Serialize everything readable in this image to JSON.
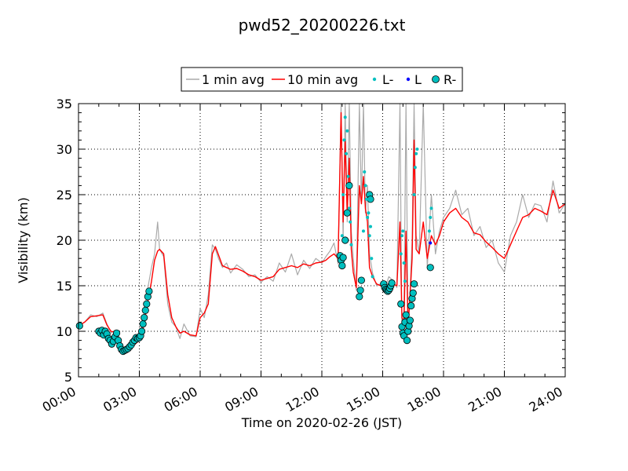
{
  "chart_data": {
    "type": "line",
    "title": "pwd52_20200226.txt",
    "xlabel": "Time on 2020-02-26 (JST)",
    "ylabel": "Visibility (km)",
    "xlim_hours": [
      0,
      24
    ],
    "ylim": [
      5,
      35
    ],
    "x_ticks": [
      {
        "h": 0,
        "label": "00:00"
      },
      {
        "h": 3,
        "label": "03:00"
      },
      {
        "h": 6,
        "label": "06:00"
      },
      {
        "h": 9,
        "label": "09:00"
      },
      {
        "h": 12,
        "label": "12:00"
      },
      {
        "h": 15,
        "label": "15:00"
      },
      {
        "h": 18,
        "label": "18:00"
      },
      {
        "h": 21,
        "label": "21:00"
      },
      {
        "h": 24,
        "label": "24:00"
      }
    ],
    "y_ticks": [
      {
        "v": 5,
        "label": "5"
      },
      {
        "v": 10,
        "label": "10"
      },
      {
        "v": 15,
        "label": "15"
      },
      {
        "v": 20,
        "label": "20"
      },
      {
        "v": 25,
        "label": "25"
      },
      {
        "v": 30,
        "label": "30"
      },
      {
        "v": 35,
        "label": "35"
      }
    ],
    "grid": true,
    "legend_position": "top-center",
    "colors": {
      "avg1": "#aaaaaa",
      "avg10": "#ff0000",
      "l_minus": "#00bfbf",
      "l": "#0000ff",
      "r_minus": "#00bfbf"
    },
    "series": [
      {
        "name": "1 min avg",
        "style": "line",
        "x": [
          0,
          0.3,
          0.6,
          0.9,
          1.2,
          1.4,
          1.6,
          1.8,
          2.0,
          2.2,
          2.4,
          2.6,
          2.8,
          3.0,
          3.2,
          3.4,
          3.6,
          3.75,
          3.9,
          4.0,
          4.2,
          4.4,
          4.6,
          4.8,
          5.0,
          5.2,
          5.5,
          5.8,
          6.0,
          6.2,
          6.4,
          6.6,
          6.75,
          6.9,
          7.1,
          7.3,
          7.5,
          7.8,
          8.1,
          8.4,
          8.7,
          9.0,
          9.3,
          9.6,
          9.9,
          10.2,
          10.5,
          10.8,
          11.1,
          11.4,
          11.7,
          12.0,
          12.2,
          12.4,
          12.6,
          12.8,
          12.95,
          13.05,
          13.15,
          13.25,
          13.35,
          13.45,
          13.55,
          13.7,
          13.85,
          13.95,
          14.05,
          14.15,
          14.25,
          14.35,
          14.5,
          14.7,
          14.9,
          15.1,
          15.3,
          15.5,
          15.7,
          15.85,
          15.95,
          16.05,
          16.15,
          16.25,
          16.35,
          16.45,
          16.55,
          16.65,
          16.8,
          17.0,
          17.2,
          17.4,
          17.6,
          17.8,
          18.0,
          18.3,
          18.6,
          18.9,
          19.2,
          19.5,
          19.8,
          20.1,
          20.4,
          20.7,
          21.0,
          21.3,
          21.6,
          21.9,
          22.2,
          22.5,
          22.8,
          23.1,
          23.4,
          23.7,
          24.0
        ],
        "y": [
          10.6,
          11.0,
          11.8,
          11.6,
          12.0,
          10.8,
          9.8,
          10.1,
          9.4,
          8.0,
          7.8,
          8.3,
          8.8,
          9.2,
          11.5,
          14.5,
          17.0,
          18.5,
          22.0,
          19.0,
          18.2,
          13.0,
          11.0,
          10.5,
          9.2,
          10.8,
          9.5,
          9.4,
          12.5,
          11.5,
          14.0,
          19.5,
          19.0,
          18.0,
          17.0,
          17.5,
          16.4,
          17.3,
          16.8,
          16.0,
          16.2,
          15.4,
          16.0,
          15.5,
          17.5,
          16.5,
          18.5,
          16.2,
          17.8,
          16.9,
          18.0,
          17.5,
          18.2,
          18.8,
          19.7,
          17.4,
          35.0,
          20.0,
          35.0,
          22.0,
          35.0,
          21.0,
          18.0,
          14.5,
          35.0,
          24.0,
          35.0,
          23.0,
          26.0,
          18.5,
          16.4,
          15.0,
          15.2,
          14.6,
          16.0,
          15.6,
          14.8,
          35.0,
          9.5,
          12.0,
          35.0,
          10.0,
          14.5,
          20.0,
          35.0,
          20.5,
          18.5,
          35.0,
          17.0,
          25.0,
          18.5,
          21.0,
          22.5,
          23.5,
          25.5,
          22.8,
          23.5,
          20.5,
          21.5,
          19.2,
          20.0,
          17.5,
          16.5,
          20.5,
          22.0,
          25.0,
          22.5,
          24.0,
          23.8,
          22.0,
          26.5,
          23.0,
          24.0
        ]
      },
      {
        "name": "10 min avg",
        "style": "line",
        "x": [
          0,
          0.3,
          0.6,
          0.9,
          1.2,
          1.4,
          1.6,
          1.8,
          2.0,
          2.2,
          2.4,
          2.6,
          2.8,
          3.0,
          3.2,
          3.4,
          3.6,
          3.75,
          3.9,
          4.0,
          4.2,
          4.4,
          4.6,
          4.8,
          5.0,
          5.2,
          5.5,
          5.8,
          6.0,
          6.2,
          6.4,
          6.6,
          6.75,
          6.9,
          7.1,
          7.3,
          7.5,
          7.8,
          8.1,
          8.4,
          8.7,
          9.0,
          9.3,
          9.6,
          9.9,
          10.2,
          10.5,
          10.8,
          11.1,
          11.4,
          11.7,
          12.0,
          12.2,
          12.4,
          12.6,
          12.8,
          12.95,
          13.05,
          13.15,
          13.25,
          13.35,
          13.45,
          13.55,
          13.7,
          13.85,
          13.95,
          14.05,
          14.15,
          14.25,
          14.35,
          14.5,
          14.7,
          14.9,
          15.1,
          15.3,
          15.5,
          15.7,
          15.85,
          15.95,
          16.05,
          16.15,
          16.25,
          16.35,
          16.45,
          16.55,
          16.65,
          16.8,
          17.0,
          17.2,
          17.4,
          17.6,
          17.8,
          18.0,
          18.3,
          18.6,
          18.9,
          19.2,
          19.5,
          19.8,
          20.1,
          20.4,
          20.7,
          21.0,
          21.3,
          21.6,
          21.9,
          22.2,
          22.5,
          22.8,
          23.1,
          23.4,
          23.7,
          24.0
        ],
        "y": [
          10.6,
          11.0,
          11.6,
          11.7,
          11.8,
          10.7,
          10.0,
          9.9,
          9.2,
          8.2,
          7.8,
          8.1,
          8.6,
          9.0,
          10.5,
          13.0,
          15.5,
          17.8,
          18.8,
          19.0,
          18.5,
          14.0,
          11.5,
          10.5,
          9.8,
          10.0,
          9.6,
          9.5,
          11.5,
          12.0,
          13.0,
          18.5,
          19.3,
          18.4,
          17.2,
          17.0,
          16.8,
          16.9,
          16.6,
          16.2,
          16.0,
          15.6,
          15.8,
          16.0,
          16.8,
          17.0,
          17.2,
          17.0,
          17.4,
          17.2,
          17.5,
          17.6,
          17.8,
          18.2,
          18.5,
          18.0,
          34.0,
          22.0,
          31.0,
          23.0,
          29.0,
          19.0,
          16.5,
          14.8,
          26.0,
          24.0,
          27.0,
          23.5,
          22.0,
          17.0,
          16.0,
          15.2,
          15.0,
          14.7,
          15.0,
          15.2,
          15.0,
          22.0,
          11.5,
          11.0,
          21.0,
          10.5,
          14.0,
          18.0,
          31.0,
          19.0,
          18.5,
          22.0,
          18.0,
          20.5,
          19.5,
          20.5,
          22.0,
          23.0,
          23.5,
          22.5,
          22.0,
          20.8,
          20.6,
          19.8,
          19.2,
          18.5,
          18.0,
          19.5,
          21.0,
          22.5,
          22.8,
          23.5,
          23.2,
          22.8,
          25.5,
          23.5,
          24.0
        ]
      },
      {
        "name": "L-",
        "style": "small-dot",
        "x": [
          13.0,
          13.05,
          13.1,
          13.15,
          13.2,
          13.25,
          13.3,
          13.35,
          13.4,
          13.45,
          14.05,
          14.1,
          14.15,
          14.2,
          14.25,
          14.3,
          14.35,
          14.4,
          14.45,
          14.5,
          15.9,
          15.95,
          16.0,
          16.05,
          16.1,
          16.55,
          16.6,
          16.65,
          16.7,
          17.3,
          17.35,
          17.4
        ],
        "y": [
          20.5,
          25.0,
          31.0,
          33.5,
          29.5,
          32.0,
          27.0,
          23.5,
          22.0,
          19.5,
          21.0,
          27.5,
          26.0,
          24.5,
          22.5,
          23.0,
          20.5,
          21.5,
          18.0,
          16.0,
          18.5,
          20.5,
          21.0,
          17.5,
          15.5,
          25.0,
          28.0,
          29.5,
          30.0,
          21.0,
          22.5,
          23.5
        ]
      },
      {
        "name": "L",
        "style": "small-dot",
        "x": [
          17.35
        ],
        "y": [
          19.7
        ]
      },
      {
        "name": "R-",
        "style": "big-marker",
        "x": [
          0.05,
          1.0,
          1.08,
          1.16,
          1.24,
          1.32,
          1.4,
          1.48,
          1.56,
          1.64,
          1.72,
          1.8,
          1.88,
          1.96,
          2.04,
          2.12,
          2.2,
          2.28,
          2.36,
          2.44,
          2.52,
          2.6,
          2.68,
          2.76,
          2.84,
          2.92,
          3.0,
          3.06,
          3.12,
          3.18,
          3.24,
          3.3,
          3.36,
          3.42,
          3.48,
          12.9,
          12.95,
          13.0,
          13.05,
          13.15,
          13.25,
          13.35,
          13.85,
          13.9,
          13.95,
          14.35,
          14.4,
          15.05,
          15.1,
          15.15,
          15.2,
          15.25,
          15.3,
          15.35,
          15.4,
          15.45,
          15.9,
          15.95,
          16.0,
          16.05,
          16.1,
          16.15,
          16.2,
          16.25,
          16.3,
          16.35,
          16.4,
          16.45,
          16.5,
          16.55,
          17.35
        ],
        "y": [
          10.6,
          10.0,
          9.8,
          10.1,
          9.6,
          10.0,
          9.7,
          9.2,
          9.0,
          8.6,
          8.9,
          9.4,
          9.8,
          9.0,
          8.4,
          8.0,
          7.8,
          7.9,
          8.0,
          8.1,
          8.3,
          8.5,
          8.8,
          9.0,
          9.3,
          9.2,
          9.3,
          9.5,
          10.0,
          10.8,
          11.5,
          12.3,
          13.0,
          13.8,
          14.4,
          18.3,
          17.8,
          17.2,
          18.1,
          20.0,
          23.0,
          26.0,
          13.8,
          14.5,
          15.6,
          25.0,
          24.5,
          15.2,
          14.8,
          14.6,
          14.5,
          14.4,
          14.5,
          14.7,
          15.0,
          15.3,
          13.0,
          10.5,
          9.8,
          9.5,
          11.0,
          11.8,
          9.0,
          10.0,
          10.6,
          11.2,
          12.8,
          13.6,
          14.2,
          15.2,
          17.0
        ]
      }
    ]
  }
}
